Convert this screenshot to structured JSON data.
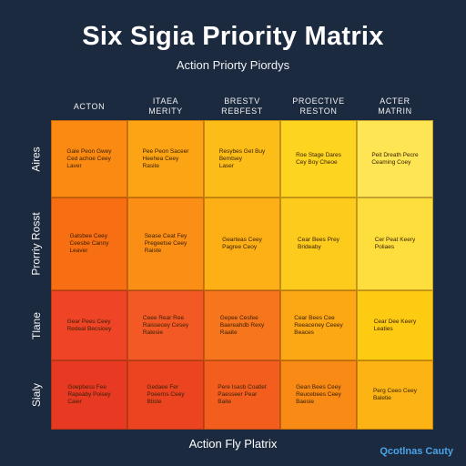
{
  "title": "Six Sigia Priority Matrix",
  "subtitle": "Action Priorty Piordys",
  "columns": [
    "ACTON",
    "ITAEA\nMERITY",
    "BRESTV\nREBFEST",
    "PROECTIVE\nRESTON",
    "ACTER\nMATRIN"
  ],
  "rows": [
    "Aires",
    "Prorriy Rosst",
    "Tlane",
    "Sialy"
  ],
  "cells": [
    [
      {
        "text": "Gaie Peon Gwey\nCed achoe Ceey\nLaver",
        "color": "#fb8a12"
      },
      {
        "text": "Pee Peon Saceer\nHeehea Ceey\nRasite",
        "color": "#fda414"
      },
      {
        "text": "Resybes Get Buy\nBemtsey\nLaser",
        "color": "#fdbd18"
      },
      {
        "text": "Roe Stage Dares\nCey Boy Cheoe",
        "color": "#fdd41f"
      },
      {
        "text": "Peit Dreath Pecre\nCeaming Coey",
        "color": "#fde553"
      }
    ],
    [
      {
        "text": "Gatsbee Ceey\nCeesbe Canny\nLeaver",
        "color": "#f86e12"
      },
      {
        "text": "Sease Ceat Fey\nPregeetse Ceey\nRaiste",
        "color": "#fb8e14"
      },
      {
        "text": "Gearteas Ceey\nPagree Ceoy",
        "color": "#fdaf16"
      },
      {
        "text": "Cear Bees Prey\nBrideaby",
        "color": "#fdcb1c"
      },
      {
        "text": "Cer Peat Keery\nPoliaes",
        "color": "#fede3c"
      }
    ],
    [
      {
        "text": "Gear Pees Ceey\nRedeal Becsioey",
        "color": "#ef4426"
      },
      {
        "text": "Ceee Rear Ree\nRaissecey Cesey\nRatesie",
        "color": "#f35924"
      },
      {
        "text": "Gepee Cesfee\nBaereahdb Rexy\nRaaite",
        "color": "#f7751c"
      },
      {
        "text": "Cear Bees Cee\nReeaceney Ceeey\nBeaces",
        "color": "#fca814"
      },
      {
        "text": "Cear Dee Keery\nLeaties",
        "color": "#fdcb12"
      }
    ],
    [
      {
        "text": "Goepbess Fee\nRapeaby Poisey\nCaier",
        "color": "#e83a22"
      },
      {
        "text": "Gedaee Fer\nPoeerns Ceey\nBtiste",
        "color": "#ec4420"
      },
      {
        "text": "Pere Isasb Coatlet\nPaesseer Pear\nBaite",
        "color": "#f35e1e"
      },
      {
        "text": "Gean Bees Ceey\nReucebees Ceey\nBaesie",
        "color": "#f98a16"
      },
      {
        "text": "Perg Ceeo Ceey\nBaletie",
        "color": "#fcb414"
      }
    ]
  ],
  "footer": "Action Fly Platrix",
  "brand": "Qcotlnas Cauty"
}
